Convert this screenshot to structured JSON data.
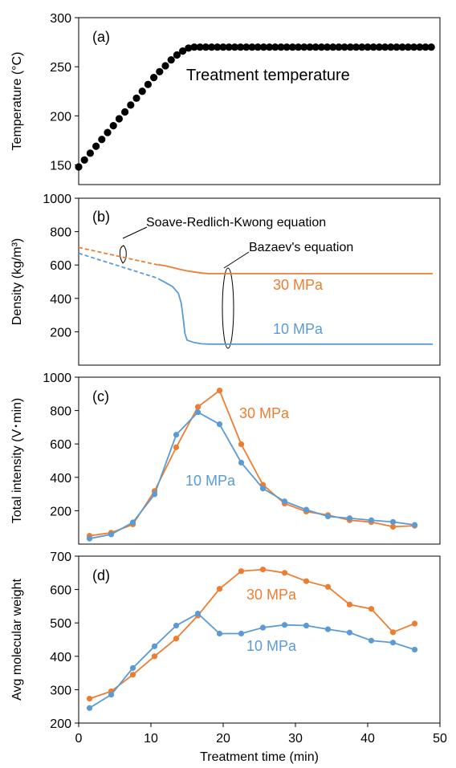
{
  "colors": {
    "black": "#000000",
    "orange": "#ED7D31",
    "blue": "#5B9BD5",
    "frame": "#000000"
  },
  "chart_data": [
    {
      "type": "scatter",
      "panel_label": "(a)",
      "xlim": [
        0,
        50
      ],
      "ylim": [
        130,
        300
      ],
      "yticks": [
        150,
        200,
        250,
        300
      ],
      "ylabel": "Temperature (°C)",
      "annotation": "Treatment temperature",
      "series": [
        {
          "name": "",
          "color": "#000000",
          "x": [
            0,
            0.8,
            1.6,
            2.4,
            3.2,
            4,
            4.8,
            5.6,
            6.4,
            7.2,
            8,
            8.8,
            9.6,
            10.4,
            11.2,
            12,
            12.8,
            13.6,
            14.4,
            15.2,
            16,
            16.8,
            17.6,
            18.4,
            19.2,
            20,
            20.8,
            21.6,
            22.4,
            23.2,
            24,
            24.8,
            25.6,
            26.4,
            27.2,
            28,
            28.8,
            29.6,
            30.4,
            31.2,
            32,
            32.8,
            33.6,
            34.4,
            35.2,
            36,
            36.8,
            37.6,
            38.4,
            39.2,
            40,
            40.8,
            41.6,
            42.4,
            43.2,
            44,
            44.8,
            45.6,
            46.4,
            47.2,
            48,
            48.8
          ],
          "y": [
            148,
            155,
            162,
            169,
            176,
            183,
            190,
            197,
            204,
            211,
            218,
            225,
            232,
            239,
            245,
            251,
            257,
            262,
            266,
            269,
            270,
            270,
            270,
            270,
            270,
            270,
            270,
            270,
            270,
            270,
            270,
            270,
            270,
            270,
            270,
            270,
            270,
            270,
            270,
            270,
            270,
            270,
            270,
            270,
            270,
            270,
            270,
            270,
            270,
            270,
            270,
            270,
            270,
            270,
            270,
            270,
            270,
            270,
            270,
            270,
            270,
            270
          ]
        }
      ]
    },
    {
      "type": "line",
      "panel_label": "(b)",
      "xlim": [
        0,
        50
      ],
      "ylim": [
        0,
        1000
      ],
      "yticks": [
        200,
        400,
        600,
        800,
        1000
      ],
      "ylabel": "Density (kg/m³)",
      "annotations": [
        "Soave-Redlich-Kwong equation",
        "Bazaev's equation"
      ],
      "series": [
        {
          "name": "30 MPa",
          "color": "#ED7D31",
          "dashed": {
            "x": [
              0,
              11
            ],
            "y": [
              705,
              600
            ]
          },
          "x": [
            11,
            12,
            13,
            14,
            15,
            16,
            17,
            18,
            20,
            30,
            40,
            49
          ],
          "y": [
            602,
            595,
            585,
            574,
            565,
            558,
            552,
            548,
            548,
            548,
            548,
            548
          ]
        },
        {
          "name": "10 MPa",
          "color": "#5B9BD5",
          "dashed": {
            "x": [
              0,
              11
            ],
            "y": [
              670,
              520
            ]
          },
          "x": [
            11,
            12,
            13,
            13.8,
            14.2,
            14.5,
            14.7,
            15,
            16,
            17,
            18,
            20,
            30,
            40,
            49
          ],
          "y": [
            518,
            495,
            470,
            430,
            370,
            270,
            190,
            150,
            135,
            128,
            126,
            126,
            126,
            126,
            126
          ]
        }
      ]
    },
    {
      "type": "line",
      "panel_label": "(c)",
      "xlim": [
        0,
        50
      ],
      "ylim": [
        0,
        1000
      ],
      "yticks": [
        200,
        400,
        600,
        800,
        1000
      ],
      "ylabel": "Total intensity (V･min)",
      "series": [
        {
          "name": "30 MPa",
          "color": "#ED7D31",
          "x": [
            1.5,
            4.5,
            7.5,
            10.5,
            13.5,
            16.5,
            19.5,
            22.5,
            25.5,
            28.5,
            31.5,
            34.5,
            37.5,
            40.5,
            43.5,
            46.5
          ],
          "y": [
            50,
            68,
            118,
            318,
            580,
            822,
            920,
            598,
            355,
            243,
            195,
            174,
            143,
            132,
            104,
            110
          ]
        },
        {
          "name": "10 MPa",
          "color": "#5B9BD5",
          "x": [
            1.5,
            4.5,
            7.5,
            10.5,
            13.5,
            16.5,
            19.5,
            22.5,
            25.5,
            28.5,
            31.5,
            34.5,
            37.5,
            40.5,
            43.5,
            46.5
          ],
          "y": [
            33,
            58,
            130,
            298,
            655,
            790,
            718,
            488,
            333,
            256,
            206,
            166,
            155,
            143,
            133,
            115
          ]
        }
      ]
    },
    {
      "type": "line",
      "panel_label": "(d)",
      "xlim": [
        0,
        50
      ],
      "ylim": [
        200,
        700
      ],
      "yticks": [
        200,
        300,
        400,
        500,
        600,
        700
      ],
      "xticks": [
        0,
        10,
        20,
        30,
        40,
        50
      ],
      "ylabel": "Avg molecular weight",
      "xlabel": "Treatment time (min)",
      "series": [
        {
          "name": "30 MPa",
          "color": "#ED7D31",
          "x": [
            1.5,
            4.5,
            7.5,
            10.5,
            13.5,
            16.5,
            19.5,
            22.5,
            25.5,
            28.5,
            31.5,
            34.5,
            37.5,
            40.5,
            43.5,
            46.5
          ],
          "y": [
            273,
            295,
            345,
            400,
            453,
            522,
            602,
            655,
            660,
            650,
            625,
            608,
            555,
            542,
            472,
            498
          ]
        },
        {
          "name": "10 MPa",
          "color": "#5B9BD5",
          "x": [
            1.5,
            4.5,
            7.5,
            10.5,
            13.5,
            16.5,
            19.5,
            22.5,
            25.5,
            28.5,
            31.5,
            34.5,
            37.5,
            40.5,
            43.5,
            46.5
          ],
          "y": [
            245,
            285,
            365,
            430,
            492,
            528,
            468,
            468,
            486,
            494,
            492,
            481,
            471,
            447,
            441,
            420
          ]
        }
      ]
    }
  ]
}
